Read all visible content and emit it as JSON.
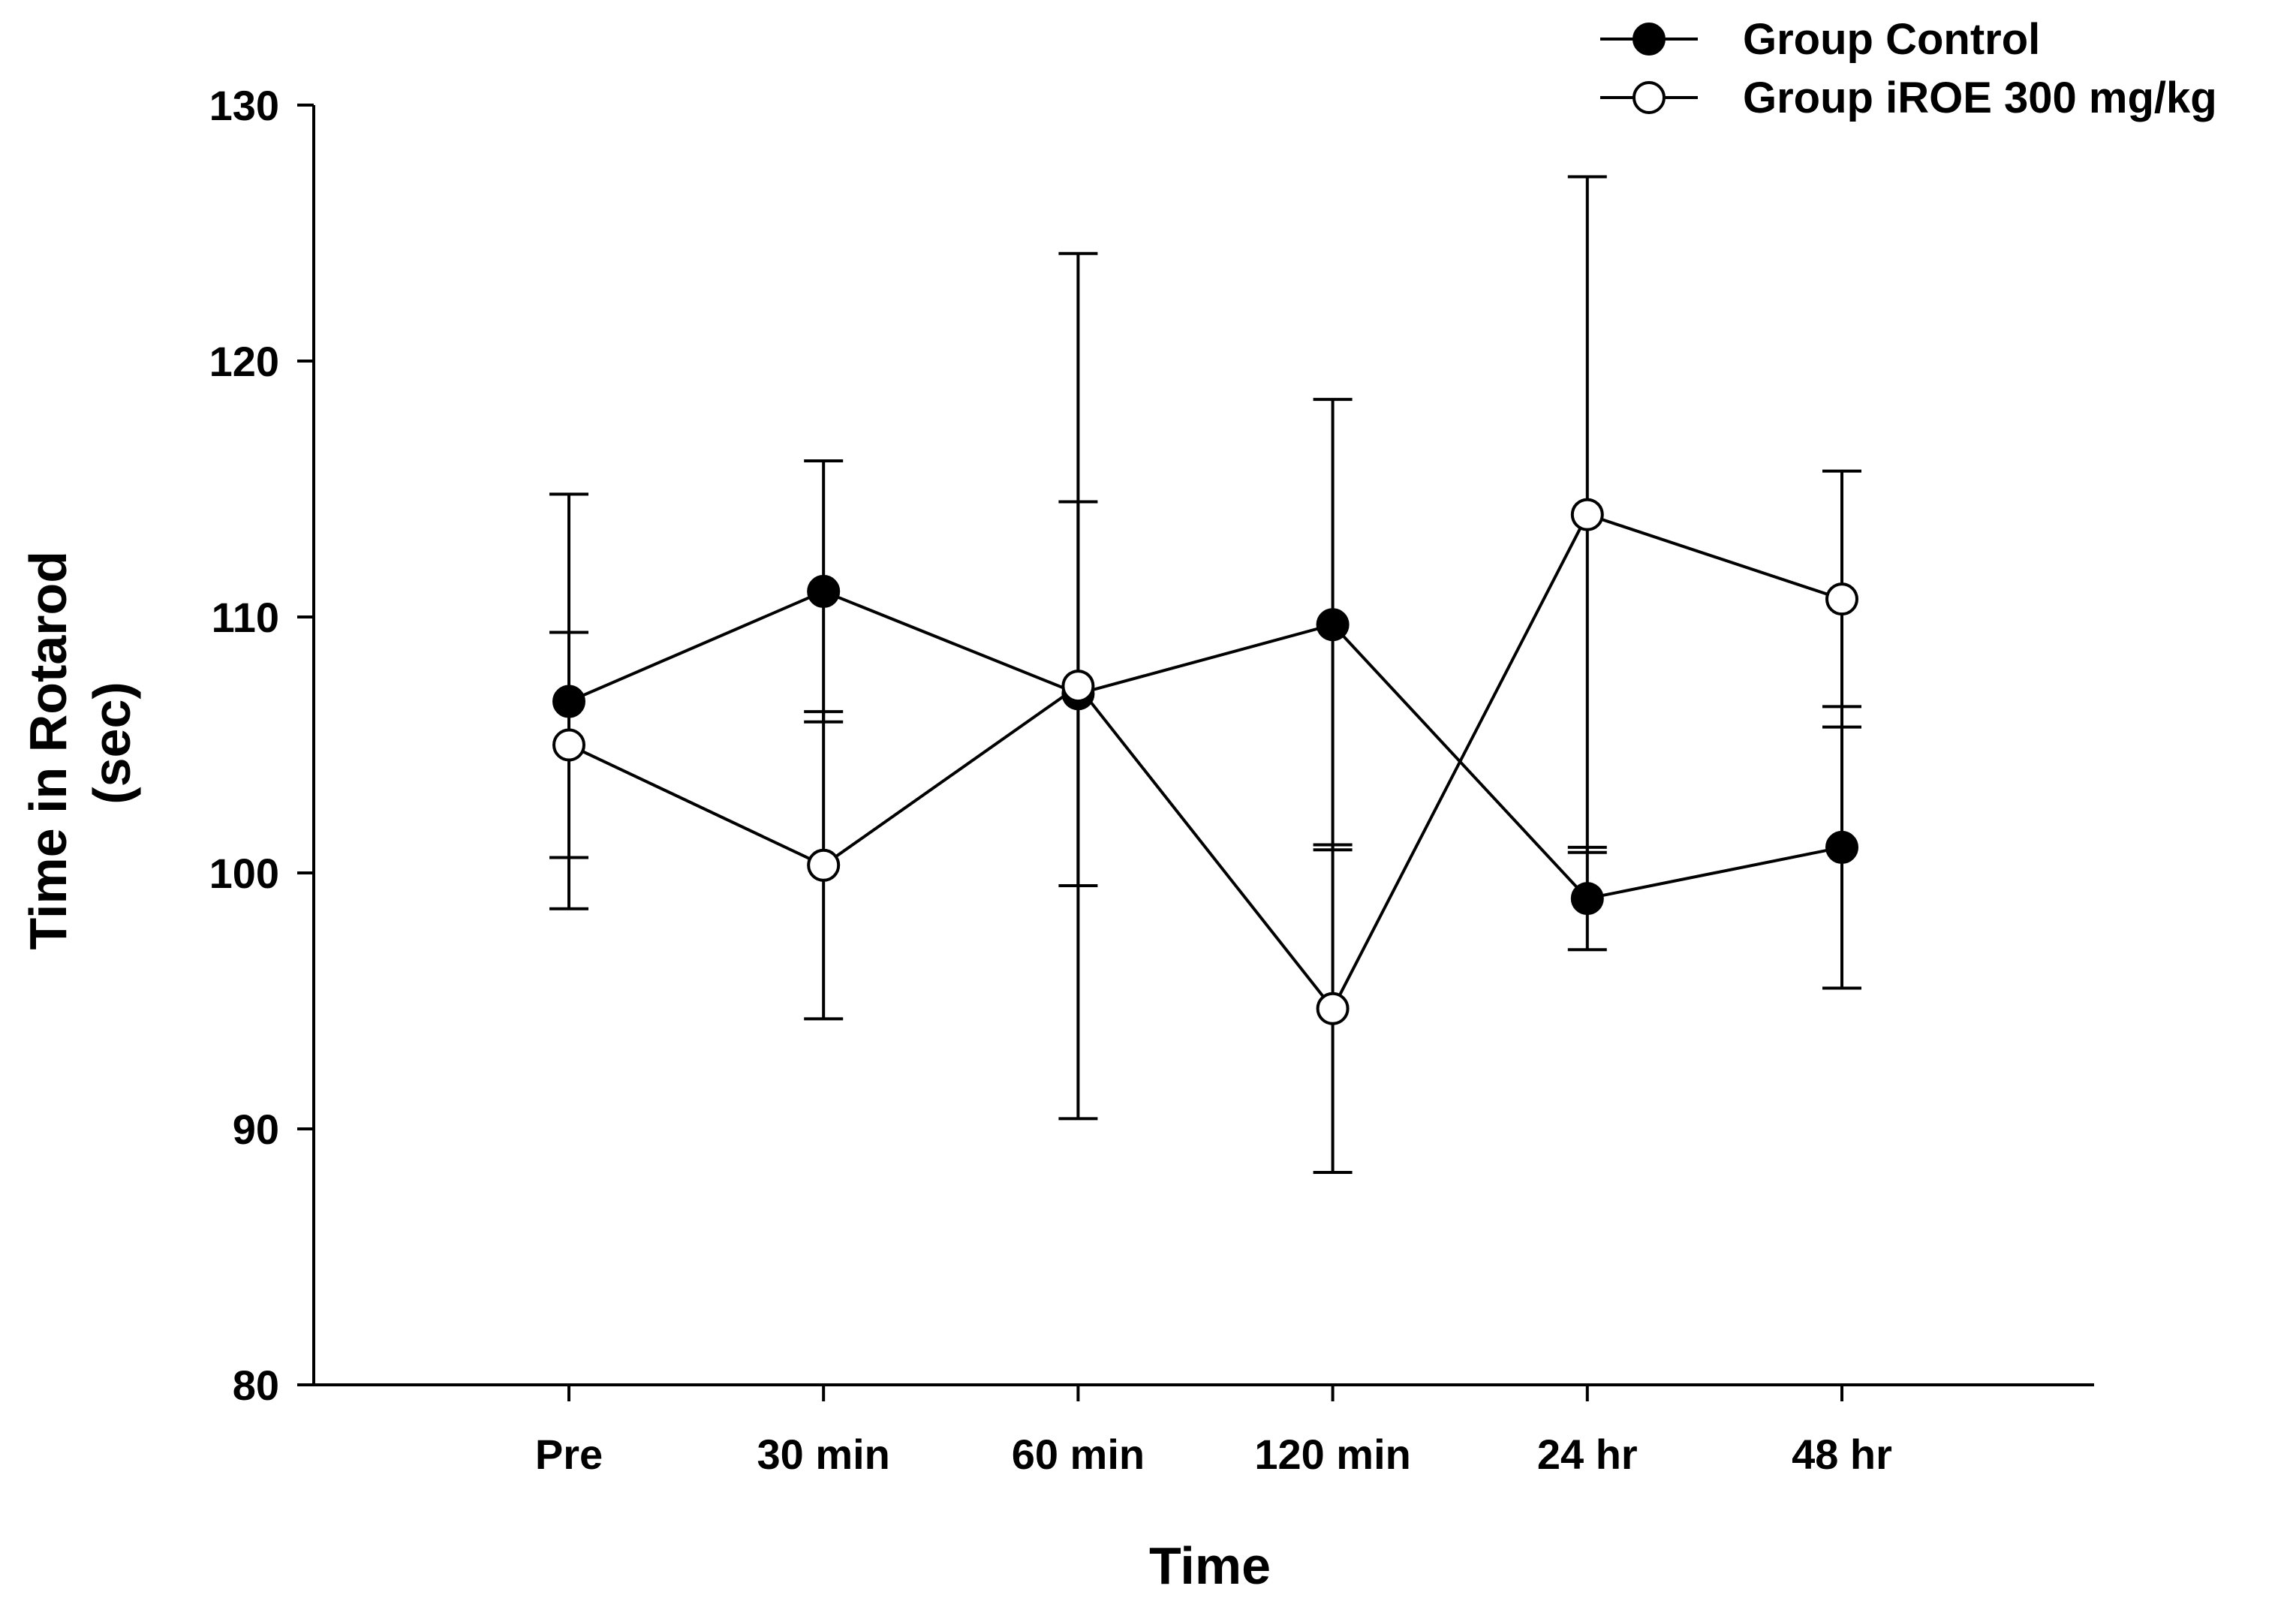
{
  "chart_data": {
    "type": "line",
    "title": "",
    "xlabel": "Time",
    "ylabel": [
      "Time in Rotarod",
      "(sec)"
    ],
    "categories": [
      "Pre",
      "30 min",
      "60 min",
      "120 min",
      "24 hr",
      "48 hr"
    ],
    "ylim": [
      80,
      130
    ],
    "yticks": [
      "130",
      "120",
      "110",
      "100",
      "90",
      "80"
    ],
    "grid": false,
    "legend_position": "top-right",
    "series": [
      {
        "name": "Group Control",
        "marker": "filled-circle",
        "values": [
          106.7,
          111.0,
          107.0,
          109.7,
          99.0,
          101.0
        ],
        "errors": [
          8.1,
          5.1,
          7.5,
          8.8,
          2.0,
          5.5
        ]
      },
      {
        "name": "Group iROE 300 mg/kg",
        "marker": "open-circle",
        "values": [
          105.0,
          100.3,
          107.3,
          94.7,
          114.0,
          110.7
        ],
        "errors": [
          4.4,
          6.0,
          16.9,
          6.4,
          13.2,
          5.0
        ]
      }
    ],
    "colors": {
      "line": "#000000",
      "filled_marker": "#000000",
      "open_marker": "#ffffff"
    }
  }
}
